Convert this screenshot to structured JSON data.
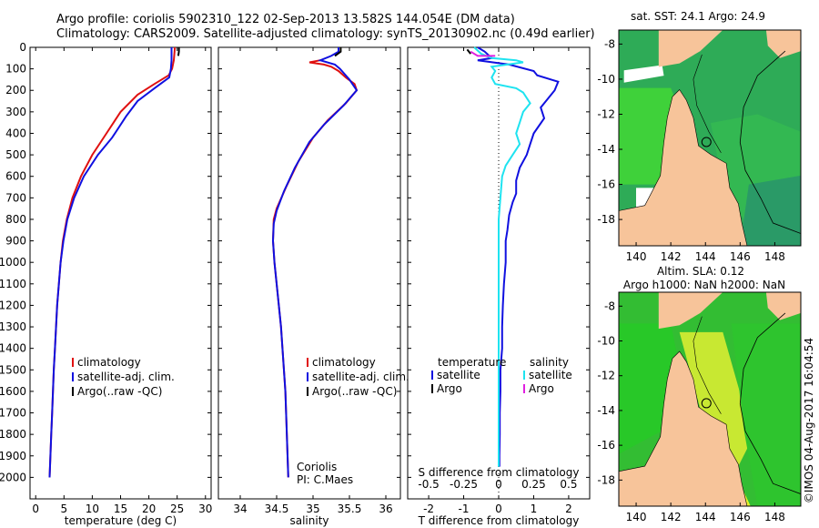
{
  "header": {
    "line1": "Argo profile: coriolis 5902310_122 02-Sep-2013 13.582S 144.054E (DM data)",
    "line2": "Climatology: CARS2009. Satellite-adjusted climatology: synTS_20130902.nc (0.49d earlier)"
  },
  "depth_axis": {
    "ticks": [
      0,
      100,
      200,
      300,
      400,
      500,
      600,
      700,
      800,
      900,
      1000,
      1100,
      1200,
      1300,
      1400,
      1500,
      1600,
      1700,
      1800,
      1900,
      2000
    ],
    "ylim": [
      0,
      2100
    ]
  },
  "colors": {
    "climatology": "#e01010",
    "satellite": "#1010e0",
    "argo": "#000000",
    "sal_satellite": "#1ee3f0",
    "sal_argo": "#e020e0"
  },
  "legend": {
    "climatology": "climatology",
    "satellite_adj": "satellite-adj. clim.",
    "argo": "Argo(..raw -QC)",
    "temperature": "temperature",
    "salinity": "salinity",
    "satellite": "satellite",
    "argo_short": "Argo"
  },
  "float_info": {
    "institution": "Coriolis",
    "pi": "PI: C.Maes"
  },
  "chart_data": [
    {
      "id": "temperature",
      "type": "line",
      "xlabel": "temperature (deg C)",
      "xlim": [
        -1,
        31
      ],
      "xticks": [
        0,
        5,
        10,
        15,
        20,
        25,
        30
      ],
      "ylabel": "depth",
      "series": [
        {
          "name": "climatology",
          "color": "#e01010",
          "points": [
            [
              24.6,
              0
            ],
            [
              24.4,
              60
            ],
            [
              24.1,
              100
            ],
            [
              23.5,
              130
            ],
            [
              21,
              170
            ],
            [
              18,
              220
            ],
            [
              15,
              300
            ],
            [
              12.5,
              400
            ],
            [
              10,
              500
            ],
            [
              8,
              600
            ],
            [
              6.5,
              700
            ],
            [
              5.5,
              800
            ],
            [
              4.8,
              900
            ],
            [
              4.4,
              1000
            ],
            [
              4.1,
              1100
            ],
            [
              3.8,
              1200
            ],
            [
              3.6,
              1300
            ],
            [
              3.4,
              1400
            ],
            [
              3.2,
              1500
            ],
            [
              3.05,
              1600
            ],
            [
              2.9,
              1700
            ],
            [
              2.75,
              1800
            ],
            [
              2.6,
              1900
            ],
            [
              2.45,
              2000
            ]
          ]
        },
        {
          "name": "satellite-adj. clim.",
          "color": "#1010e0",
          "points": [
            [
              24.0,
              0
            ],
            [
              24.0,
              60
            ],
            [
              23.9,
              100
            ],
            [
              23.6,
              140
            ],
            [
              21,
              190
            ],
            [
              18,
              250
            ],
            [
              16,
              320
            ],
            [
              13.5,
              420
            ],
            [
              11,
              500
            ],
            [
              8.5,
              600
            ],
            [
              6.8,
              700
            ],
            [
              5.6,
              800
            ],
            [
              4.9,
              900
            ],
            [
              4.4,
              1000
            ],
            [
              4.1,
              1100
            ],
            [
              3.8,
              1200
            ],
            [
              3.6,
              1300
            ],
            [
              3.4,
              1400
            ],
            [
              3.2,
              1500
            ],
            [
              3.05,
              1600
            ],
            [
              2.9,
              1700
            ],
            [
              2.75,
              1800
            ],
            [
              2.6,
              1900
            ],
            [
              2.45,
              2000
            ]
          ]
        },
        {
          "name": "Argo(..raw -QC)",
          "color": "#000000",
          "points": [
            [
              25.3,
              0
            ],
            [
              25.3,
              20
            ],
            [
              25.2,
              40
            ]
          ]
        }
      ]
    },
    {
      "id": "salinity",
      "type": "line",
      "xlabel": "salinity",
      "xlim": [
        33.7,
        36.2
      ],
      "xticks": [
        34,
        34.5,
        35,
        35.5,
        36
      ],
      "ylabel": "depth",
      "series": [
        {
          "name": "climatology",
          "color": "#e01010",
          "points": [
            [
              35.1,
              60
            ],
            [
              34.95,
              70
            ],
            [
              35.15,
              80
            ],
            [
              35.25,
              90
            ],
            [
              35.35,
              110
            ],
            [
              35.45,
              140
            ],
            [
              35.57,
              170
            ],
            [
              35.6,
              200
            ],
            [
              35.45,
              260
            ],
            [
              35.2,
              340
            ],
            [
              35.0,
              420
            ],
            [
              34.8,
              530
            ],
            [
              34.63,
              650
            ],
            [
              34.5,
              750
            ],
            [
              34.46,
              800
            ],
            [
              34.45,
              900
            ],
            [
              34.47,
              1000
            ],
            [
              34.5,
              1100
            ],
            [
              34.53,
              1200
            ],
            [
              34.56,
              1300
            ],
            [
              34.58,
              1400
            ],
            [
              34.6,
              1500
            ],
            [
              34.62,
              1600
            ],
            [
              34.63,
              1700
            ],
            [
              34.64,
              1800
            ],
            [
              34.65,
              1900
            ],
            [
              34.66,
              2000
            ]
          ]
        },
        {
          "name": "satellite-adj. clim.",
          "color": "#1010e0",
          "points": [
            [
              35.35,
              0
            ],
            [
              35.35,
              20
            ],
            [
              35.25,
              40
            ],
            [
              35.1,
              60
            ],
            [
              35.3,
              80
            ],
            [
              35.37,
              100
            ],
            [
              35.5,
              150
            ],
            [
              35.6,
              200
            ],
            [
              35.42,
              270
            ],
            [
              35.15,
              360
            ],
            [
              34.95,
              440
            ],
            [
              34.75,
              560
            ],
            [
              34.6,
              670
            ],
            [
              34.5,
              760
            ],
            [
              34.46,
              820
            ],
            [
              34.45,
              900
            ],
            [
              34.47,
              1000
            ],
            [
              34.5,
              1100
            ],
            [
              34.53,
              1200
            ],
            [
              34.56,
              1300
            ],
            [
              34.58,
              1400
            ],
            [
              34.6,
              1500
            ],
            [
              34.62,
              1600
            ],
            [
              34.63,
              1700
            ],
            [
              34.64,
              1800
            ],
            [
              34.65,
              1900
            ],
            [
              34.66,
              2000
            ]
          ]
        },
        {
          "name": "Argo(..raw -QC)",
          "color": "#000000",
          "points": [
            [
              35.38,
              0
            ],
            [
              35.38,
              20
            ],
            [
              35.3,
              40
            ]
          ]
        }
      ]
    },
    {
      "id": "differences",
      "type": "line",
      "xlabel": "T difference from climatology",
      "x2label": "S difference from climatology",
      "xlim": [
        -2.6,
        2.6
      ],
      "xticks": [
        -2,
        -1,
        0,
        1,
        2
      ],
      "x2ticks_labels": [
        "-0.5",
        "-0.25",
        "0",
        "0.25",
        "0.5"
      ],
      "x2ticks_pos": [
        -2,
        -1,
        0,
        1,
        2
      ],
      "ylabel": "depth",
      "series": [
        {
          "name": "temperature satellite",
          "color": "#1010e0",
          "points": [
            [
              -0.6,
              0
            ],
            [
              -0.4,
              20
            ],
            [
              -0.2,
              50
            ],
            [
              -0.6,
              60
            ],
            [
              0.3,
              80
            ],
            [
              1.0,
              110
            ],
            [
              1.1,
              130
            ],
            [
              1.5,
              150
            ],
            [
              1.7,
              160
            ],
            [
              1.6,
              200
            ],
            [
              1.4,
              240
            ],
            [
              1.2,
              280
            ],
            [
              1.3,
              330
            ],
            [
              1.0,
              400
            ],
            [
              0.9,
              450
            ],
            [
              0.8,
              500
            ],
            [
              0.6,
              560
            ],
            [
              0.5,
              620
            ],
            [
              0.5,
              680
            ],
            [
              0.4,
              720
            ],
            [
              0.3,
              780
            ],
            [
              0.25,
              850
            ],
            [
              0.2,
              900
            ],
            [
              0.2,
              1000
            ],
            [
              0.15,
              1100
            ],
            [
              0.12,
              1200
            ],
            [
              0.1,
              1300
            ],
            [
              0.1,
              1400
            ],
            [
              0.05,
              1500
            ],
            [
              0.05,
              1600
            ],
            [
              0.03,
              1700
            ],
            [
              0.03,
              1800
            ],
            [
              0.02,
              1900
            ],
            [
              0.02,
              1950
            ]
          ]
        },
        {
          "name": "temperature Argo",
          "color": "#000000",
          "points": [
            [
              -0.9,
              10
            ],
            [
              -0.8,
              30
            ]
          ]
        },
        {
          "name": "salinity satellite",
          "color": "#1ee3f0",
          "points": [
            [
              -0.7,
              0
            ],
            [
              -0.5,
              30
            ],
            [
              -0.2,
              50
            ],
            [
              0.5,
              60
            ],
            [
              0.7,
              70
            ],
            [
              -0.2,
              90
            ],
            [
              -0.1,
              110
            ],
            [
              -0.2,
              140
            ],
            [
              -0.1,
              170
            ],
            [
              0.5,
              190
            ],
            [
              0.7,
              210
            ],
            [
              0.9,
              260
            ],
            [
              0.7,
              300
            ],
            [
              0.6,
              350
            ],
            [
              0.5,
              400
            ],
            [
              0.6,
              450
            ],
            [
              0.4,
              500
            ],
            [
              0.2,
              550
            ],
            [
              0.1,
              600
            ],
            [
              0.05,
              700
            ],
            [
              0.0,
              800
            ],
            [
              0.0,
              900
            ],
            [
              0.0,
              1000
            ],
            [
              0.0,
              1100
            ],
            [
              0.0,
              1200
            ],
            [
              0.0,
              1300
            ],
            [
              0.0,
              1400
            ],
            [
              0.0,
              1500
            ],
            [
              0.0,
              1600
            ],
            [
              0.0,
              1700
            ],
            [
              0.0,
              1800
            ],
            [
              0.0,
              1950
            ]
          ]
        },
        {
          "name": "salinity Argo",
          "color": "#e020e0",
          "points": [
            [
              -0.8,
              20
            ],
            [
              -0.6,
              40
            ],
            [
              -0.1,
              40
            ]
          ]
        }
      ]
    },
    {
      "id": "sst_map",
      "type": "heatmap",
      "title": "sat. SST: 24.1  Argo: 24.9",
      "xticks": [
        140,
        142,
        144,
        146,
        148
      ],
      "yticks": [
        -8,
        -10,
        -12,
        -14,
        -16,
        -18
      ],
      "xlim": [
        139,
        149.5
      ],
      "ylim": [
        -19.5,
        -7.2
      ],
      "argo_position": [
        144.054,
        -13.582
      ]
    },
    {
      "id": "sla_map",
      "type": "heatmap",
      "title": "Altim. SLA: 0.12",
      "subtitle": "Argo h1000: NaN  h2000: NaN",
      "xticks": [
        140,
        142,
        144,
        146,
        148
      ],
      "yticks": [
        -8,
        -10,
        -12,
        -14,
        -16,
        -18
      ],
      "xlim": [
        139,
        149.5
      ],
      "ylim": [
        -19.5,
        -7.2
      ],
      "argo_position": [
        144.054,
        -13.582
      ]
    }
  ],
  "stamp": "©IMOS 04-Aug-2017 16:04:54"
}
